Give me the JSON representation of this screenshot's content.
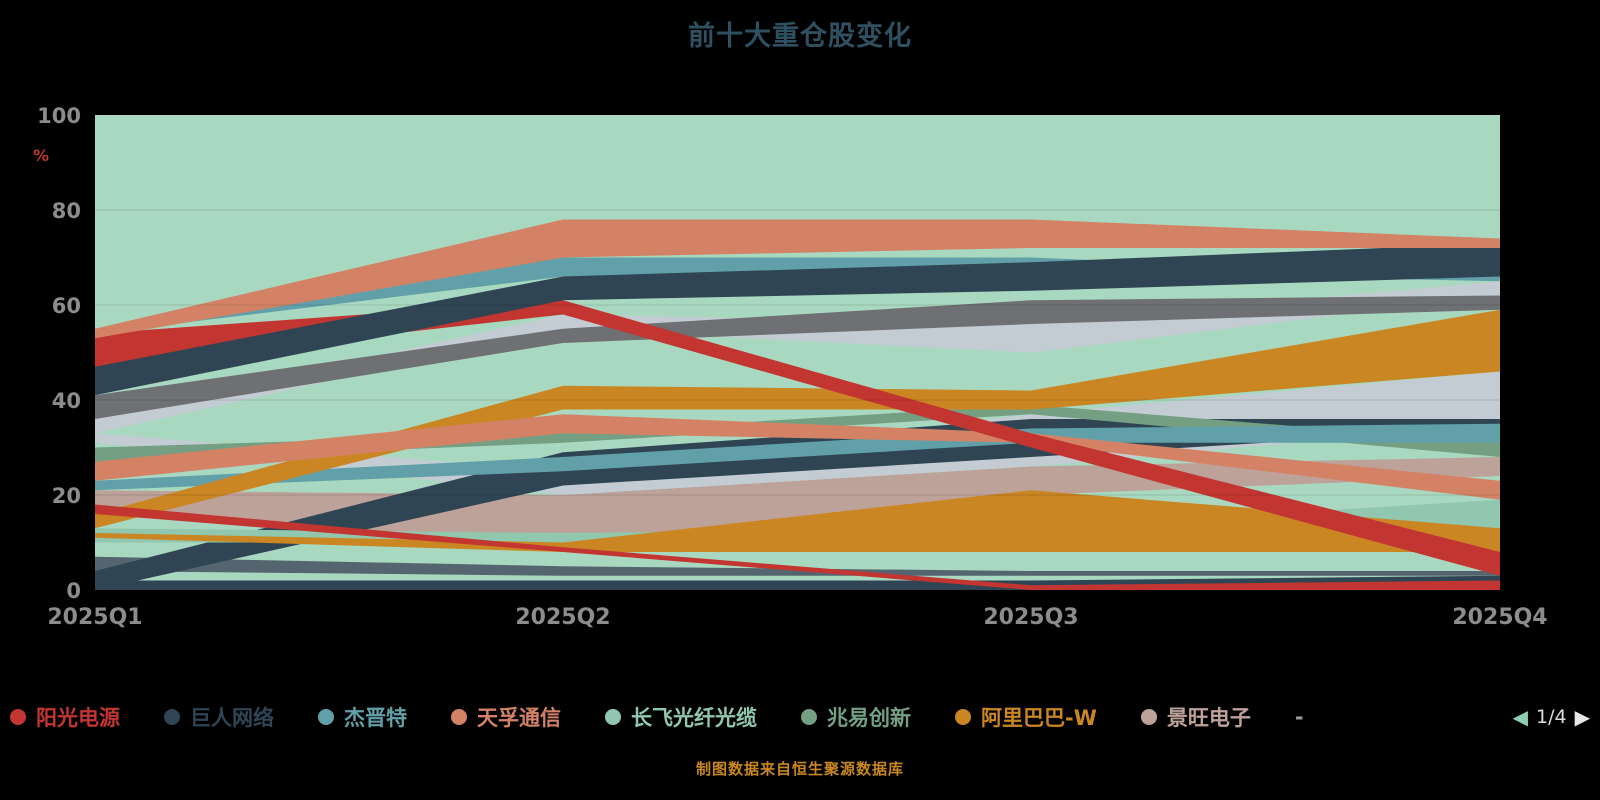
{
  "title": "前十大重仓股变化",
  "y_axis_unit": "%",
  "footer": "制图数据来自恒生聚源数据库",
  "legend": {
    "items": [
      {
        "label": "阳光电源",
        "color": "#c23531"
      },
      {
        "label": "巨人网络",
        "color": "#2f4554"
      },
      {
        "label": "杰晋特",
        "color": "#61a0a8"
      },
      {
        "label": "天孚通信",
        "color": "#d48265"
      },
      {
        "label": "长飞光纤光缆",
        "color": "#91c7ae"
      },
      {
        "label": "兆易创新",
        "color": "#749f83"
      },
      {
        "label": "阿里巴巴-W",
        "color": "#ca8622"
      },
      {
        "label": "景旺电子",
        "color": "#bda29a"
      }
    ],
    "separator": "-",
    "pager": {
      "current": "1/4",
      "prev_color": "#8ecfb2",
      "next_color": "#e8e8e8"
    }
  },
  "chart_data": {
    "type": "area",
    "title": "前十大重仓股变化",
    "x": [
      "2025Q1",
      "2025Q2",
      "2025Q3",
      "2025Q4"
    ],
    "xlabel": "",
    "ylabel": "%",
    "ylim": [
      0,
      100
    ],
    "yticks": [
      0,
      20,
      40,
      60,
      80,
      100
    ],
    "grid": true,
    "legend_position": "bottom",
    "plot_bg": "#a9d8c0",
    "axis_label_color": "#8c8c8c",
    "series": [
      {
        "name": "景旺电子",
        "color": "#bda29a",
        "top": [
          21,
          20,
          26,
          28
        ],
        "bottom": [
          17,
          8,
          20,
          24
        ]
      },
      {
        "name": "unlabeled-light-1",
        "color": "#c4ccd3",
        "top": [
          33,
          25,
          37,
          46
        ],
        "bottom": [
          31,
          20,
          26,
          35
        ]
      },
      {
        "name": "unlabeled-light-2",
        "color": "#c4ccd3",
        "top": [
          36,
          58,
          56,
          65
        ],
        "bottom": [
          33,
          55,
          50,
          62
        ]
      },
      {
        "name": "unlabeled-gray",
        "color": "#6e7074",
        "top": [
          41,
          55,
          61,
          62
        ],
        "bottom": [
          36,
          52,
          56,
          59
        ]
      },
      {
        "name": "unlabeled-steel",
        "color": "#546570",
        "top": [
          7,
          5,
          4,
          4
        ],
        "bottom": [
          4,
          3,
          3,
          3
        ]
      },
      {
        "name": "unlabeled-navy-2",
        "color": "#2f4554",
        "top": [
          4,
          29,
          36,
          36
        ],
        "bottom": [
          0,
          22,
          28,
          34
        ]
      },
      {
        "name": "unlabeled-navy-3",
        "color": "#2f4554",
        "top": [
          2,
          2,
          2,
          3
        ],
        "bottom": [
          0,
          0,
          0,
          0
        ]
      },
      {
        "name": "兆易创新",
        "color": "#749f83",
        "top": [
          30,
          33,
          39,
          31
        ],
        "bottom": [
          27,
          31,
          37,
          28
        ]
      },
      {
        "name": "杰晋特",
        "color": "#61a0a8",
        "top": [
          23,
          28,
          34,
          35
        ],
        "bottom": [
          21,
          25,
          31,
          31
        ]
      },
      {
        "name": "长飞光纤光缆",
        "color": "#91c7ae",
        "top": [
          13,
          12,
          13,
          19
        ],
        "bottom": [
          10,
          10,
          11,
          13
        ]
      },
      {
        "name": "unlabeled-amber-2",
        "color": "#ca8622",
        "top": [
          12,
          10,
          21,
          13
        ],
        "bottom": [
          11,
          8,
          8,
          8
        ]
      },
      {
        "name": "阿里巴巴-W",
        "color": "#ca8622",
        "top": [
          16,
          43,
          42,
          59
        ],
        "bottom": [
          13,
          38,
          38,
          46
        ]
      },
      {
        "name": "unlabeled-salmon-2",
        "color": "#d48265",
        "top": [
          27,
          37,
          33,
          23
        ],
        "bottom": [
          23,
          33,
          31,
          19
        ]
      },
      {
        "name": "unlabeled-red-2",
        "color": "#c23531",
        "top": [
          18,
          9,
          1,
          2
        ],
        "bottom": [
          16,
          8,
          0,
          0
        ]
      },
      {
        "name": "阳光电源",
        "color": "#c23531",
        "top": [
          54,
          61,
          33,
          8
        ],
        "bottom": [
          47,
          58,
          30,
          3
        ]
      },
      {
        "name": "unlabeled-teal-2",
        "color": "#61a0a8",
        "top": [
          55,
          70,
          70,
          66
        ],
        "bottom": [
          54,
          66,
          67,
          65
        ]
      },
      {
        "name": "巨人网络",
        "color": "#2f4554",
        "top": [
          47,
          66,
          69,
          73
        ],
        "bottom": [
          41,
          61,
          63,
          66
        ]
      },
      {
        "name": "天孚通信",
        "color": "#d48265",
        "top": [
          55,
          78,
          78,
          74
        ],
        "bottom": [
          53,
          70,
          72,
          72
        ]
      }
    ]
  }
}
